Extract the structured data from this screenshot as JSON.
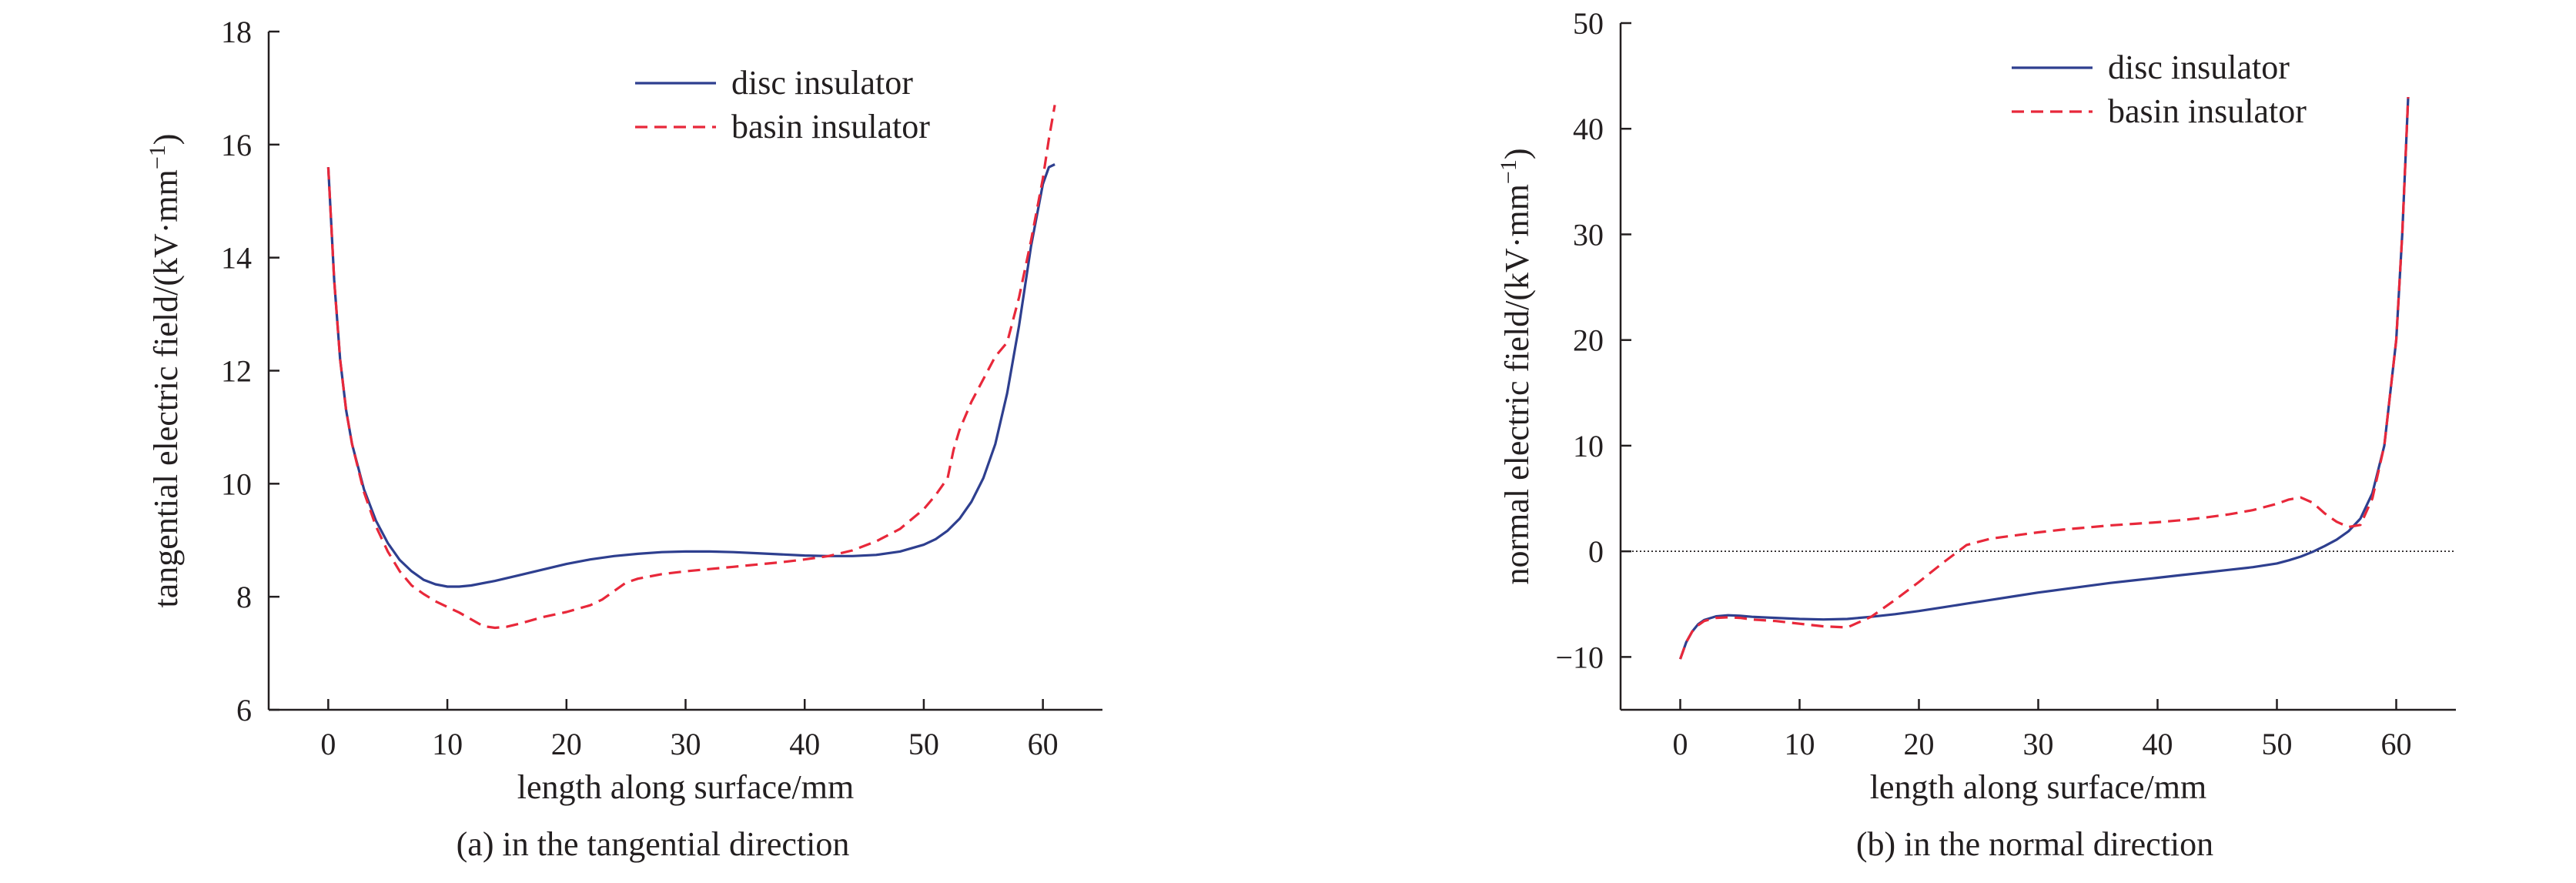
{
  "chart_data": [
    {
      "type": "line",
      "caption": "(a) in the tangential direction",
      "xlabel": "length along surface/mm",
      "ylabel_main": "tangential electric field/(kV·mm",
      "ylabel_sup": "−1",
      "ylabel_close": ")",
      "xlim": [
        -5,
        65
      ],
      "ylim": [
        6,
        18
      ],
      "xticks": [
        0,
        10,
        20,
        30,
        40,
        50,
        60
      ],
      "yticks": [
        6,
        8,
        10,
        12,
        14,
        16,
        18
      ],
      "grid": false,
      "legend_position": "top-right",
      "series": [
        {
          "name": "disc insulator",
          "color": "#2e3f8f",
          "dash": "solid",
          "x": [
            0,
            0.5,
            1,
            1.5,
            2,
            3,
            4,
            5,
            6,
            7,
            8,
            9,
            10,
            11,
            12,
            14,
            16,
            18,
            20,
            22,
            24,
            26,
            28,
            30,
            32,
            34,
            36,
            38,
            40,
            42,
            44,
            46,
            48,
            50,
            51,
            52,
            53,
            54,
            55,
            56,
            57,
            58,
            59,
            60,
            60.5,
            61
          ],
          "y": [
            15.6,
            13.6,
            12.2,
            11.3,
            10.7,
            9.9,
            9.35,
            8.95,
            8.65,
            8.45,
            8.3,
            8.22,
            8.18,
            8.18,
            8.2,
            8.28,
            8.38,
            8.48,
            8.58,
            8.66,
            8.72,
            8.76,
            8.79,
            8.8,
            8.8,
            8.79,
            8.77,
            8.75,
            8.73,
            8.72,
            8.72,
            8.74,
            8.8,
            8.92,
            9.02,
            9.17,
            9.38,
            9.68,
            10.1,
            10.7,
            11.6,
            12.8,
            14.2,
            15.3,
            15.6,
            15.65
          ]
        },
        {
          "name": "basin insulator",
          "color": "#e8283a",
          "dash": "dashed",
          "x": [
            0,
            0.5,
            1,
            1.5,
            2,
            3,
            4,
            5,
            6,
            7,
            8,
            9,
            10,
            11,
            12,
            13,
            14,
            15,
            16,
            18,
            20,
            22,
            23,
            24,
            25,
            26,
            28,
            30,
            32,
            34,
            36,
            38,
            40,
            42,
            44,
            46,
            48,
            50,
            51,
            52,
            52.5,
            53,
            54,
            55,
            56,
            57,
            58,
            59,
            60,
            60.5,
            61
          ],
          "y": [
            15.6,
            13.6,
            12.2,
            11.3,
            10.7,
            9.85,
            9.25,
            8.8,
            8.45,
            8.2,
            8.05,
            7.92,
            7.82,
            7.72,
            7.6,
            7.48,
            7.45,
            7.47,
            7.52,
            7.64,
            7.73,
            7.85,
            7.95,
            8.1,
            8.25,
            8.32,
            8.4,
            8.45,
            8.49,
            8.53,
            8.57,
            8.61,
            8.66,
            8.72,
            8.82,
            8.98,
            9.2,
            9.55,
            9.8,
            10.1,
            10.6,
            10.95,
            11.45,
            11.85,
            12.25,
            12.5,
            13.3,
            14.3,
            15.4,
            16.1,
            16.7
          ]
        }
      ]
    },
    {
      "type": "line",
      "caption": "(b) in the normal direction",
      "xlabel": "length along surface/mm",
      "ylabel_main": "normal electric field/(kV·mm",
      "ylabel_sup": "−1",
      "ylabel_close": ")",
      "xlim": [
        -5,
        65
      ],
      "ylim": [
        -15,
        50
      ],
      "xticks": [
        0,
        10,
        20,
        30,
        40,
        50,
        60
      ],
      "yticks": [
        -10,
        0,
        10,
        20,
        30,
        40,
        50
      ],
      "ytick_labels": [
        "−10",
        "0",
        "10",
        "20",
        "30",
        "40",
        "50"
      ],
      "grid": false,
      "zero_line": true,
      "legend_position": "top-right",
      "series": [
        {
          "name": "disc insulator",
          "color": "#2e3f8f",
          "dash": "solid",
          "x": [
            0,
            0.5,
            1,
            1.5,
            2,
            3,
            4,
            5,
            6,
            8,
            10,
            12,
            14,
            16,
            18,
            20,
            22,
            24,
            26,
            28,
            30,
            32,
            34,
            36,
            38,
            40,
            42,
            44,
            46,
            48,
            50,
            51,
            52,
            53,
            54,
            55,
            56,
            57,
            58,
            59,
            60,
            60.5,
            61
          ],
          "y": [
            -10.2,
            -8.6,
            -7.6,
            -6.9,
            -6.5,
            -6.15,
            -6.05,
            -6.1,
            -6.2,
            -6.3,
            -6.4,
            -6.45,
            -6.4,
            -6.2,
            -5.95,
            -5.65,
            -5.3,
            -4.95,
            -4.6,
            -4.25,
            -3.9,
            -3.6,
            -3.3,
            -3.0,
            -2.75,
            -2.5,
            -2.25,
            -2.0,
            -1.75,
            -1.5,
            -1.15,
            -0.85,
            -0.5,
            -0.05,
            0.5,
            1.1,
            1.9,
            3.1,
            5.5,
            10.0,
            20.0,
            30.0,
            43.0
          ]
        },
        {
          "name": "basin insulator",
          "color": "#e8283a",
          "dash": "dashed",
          "x": [
            0,
            0.5,
            1,
            1.5,
            2,
            3,
            4,
            5,
            6,
            8,
            10,
            12,
            14,
            16,
            18,
            20,
            22,
            24,
            25,
            26,
            28,
            30,
            32,
            34,
            36,
            38,
            40,
            42,
            44,
            46,
            48,
            50,
            51,
            52,
            53,
            54,
            55,
            56,
            57,
            58,
            59,
            60,
            60.5,
            61
          ],
          "y": [
            -10.2,
            -8.6,
            -7.6,
            -7.0,
            -6.6,
            -6.3,
            -6.25,
            -6.3,
            -6.45,
            -6.6,
            -6.85,
            -7.1,
            -7.2,
            -6.2,
            -4.6,
            -2.9,
            -1.1,
            0.6,
            0.9,
            1.2,
            1.5,
            1.8,
            2.05,
            2.25,
            2.45,
            2.6,
            2.75,
            2.95,
            3.2,
            3.5,
            3.9,
            4.5,
            4.9,
            5.1,
            4.6,
            3.6,
            2.8,
            2.3,
            2.5,
            5.0,
            10.0,
            20.0,
            30.0,
            43.0
          ]
        }
      ]
    }
  ]
}
